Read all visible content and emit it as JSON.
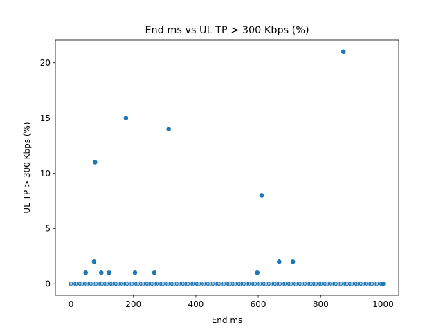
{
  "chart_data": {
    "type": "scatter",
    "title": "End ms vs UL TP > 300 Kbps (%)",
    "xlabel": "End ms",
    "ylabel": "UL TP > 300 Kbps (%)",
    "xlim": [
      -50,
      1050
    ],
    "ylim": [
      -1.05,
      22.05
    ],
    "xticks": [
      0,
      200,
      400,
      600,
      800,
      1000
    ],
    "yticks": [
      0,
      5,
      10,
      15,
      20
    ],
    "grid": false,
    "color": "#1f77b4",
    "nonzero_points": [
      {
        "x": 47,
        "y": 1
      },
      {
        "x": 74,
        "y": 2
      },
      {
        "x": 77,
        "y": 11
      },
      {
        "x": 97,
        "y": 1
      },
      {
        "x": 122,
        "y": 1
      },
      {
        "x": 176,
        "y": 15
      },
      {
        "x": 205,
        "y": 1
      },
      {
        "x": 267,
        "y": 1
      },
      {
        "x": 313,
        "y": 14
      },
      {
        "x": 597,
        "y": 1
      },
      {
        "x": 611,
        "y": 8
      },
      {
        "x": 667,
        "y": 2
      },
      {
        "x": 711,
        "y": 2
      },
      {
        "x": 873,
        "y": 21
      }
    ],
    "zero_range": {
      "x_start": 0,
      "x_end": 1000,
      "step": 5,
      "y": 0
    }
  }
}
